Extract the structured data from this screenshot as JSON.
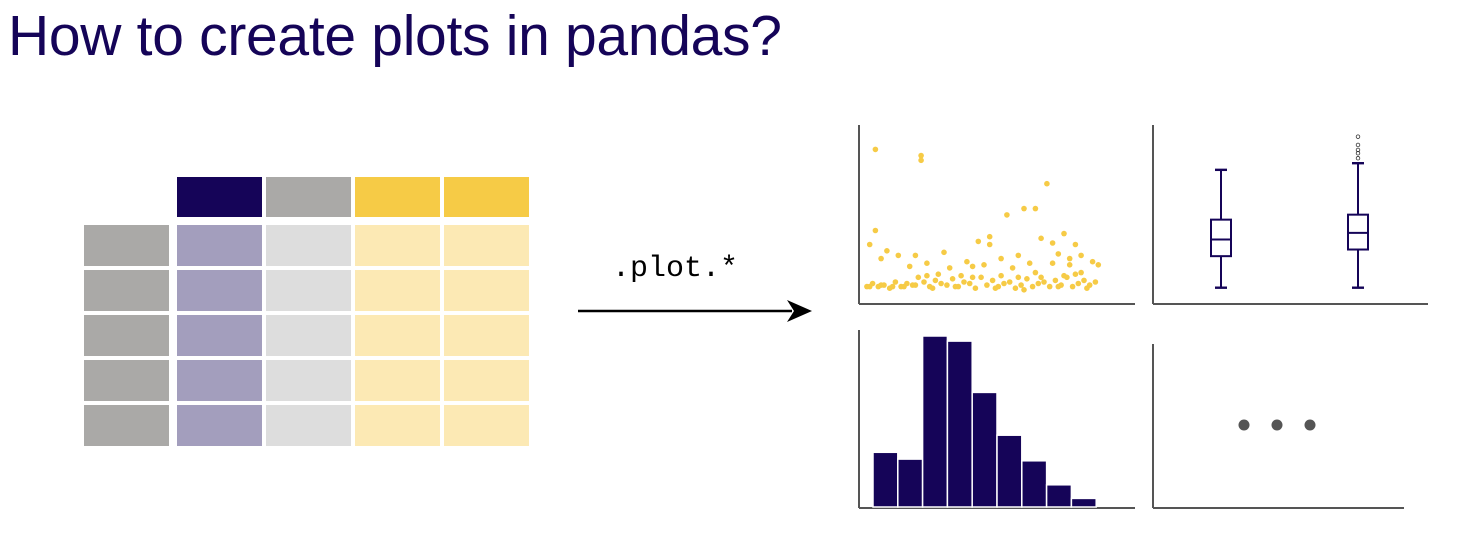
{
  "title": "How to create plots in pandas?",
  "operation": ".plot.*",
  "more_plots": "...",
  "colors": {
    "title": "#150458",
    "header_dark": "#150458",
    "header_gray": "#aaa9a7",
    "header_yellow": "#f6cb46",
    "index_gray": "#aaa9a7",
    "cell_purple": "#a39ebd",
    "cell_lightgray": "#dddddd",
    "cell_lightyellow": "#fce9b4",
    "axis": "#555555",
    "dot": "#555555"
  },
  "table": {
    "columns": 4,
    "rows": 5,
    "header_colors": [
      "header_dark",
      "header_gray",
      "header_yellow",
      "header_yellow"
    ],
    "column_fill": [
      "cell_purple",
      "cell_lightgray",
      "cell_lightyellow",
      "cell_lightyellow"
    ]
  },
  "icons": {
    "arrow": "right-arrow-icon",
    "ellipsis": "ellipsis-icon"
  },
  "chart_data": [
    {
      "type": "scatter",
      "panel": "top-left",
      "points": [
        [
          2,
          0.94
        ],
        [
          10,
          0.9
        ],
        [
          10,
          0.87
        ],
        [
          32,
          0.72
        ],
        [
          28,
          0.56
        ],
        [
          30,
          0.56
        ],
        [
          25,
          0.52
        ],
        [
          2,
          0.42
        ],
        [
          1,
          0.33
        ],
        [
          6,
          0.26
        ],
        [
          14,
          0.28
        ],
        [
          20,
          0.35
        ],
        [
          22,
          0.38
        ],
        [
          22,
          0.33
        ],
        [
          24,
          0.24
        ],
        [
          27,
          0.26
        ],
        [
          31,
          0.37
        ],
        [
          33,
          0.34
        ],
        [
          35,
          0.4
        ],
        [
          34,
          0.27
        ],
        [
          36,
          0.24
        ],
        [
          37,
          0.33
        ],
        [
          38,
          0.26
        ],
        [
          3,
          0.24
        ],
        [
          4,
          0.29
        ],
        [
          8,
          0.19
        ],
        [
          9,
          0.26
        ],
        [
          11,
          0.21
        ],
        [
          15,
          0.18
        ],
        [
          18,
          0.22
        ],
        [
          19,
          0.19
        ],
        [
          26,
          0.18
        ],
        [
          21,
          0.2
        ],
        [
          29,
          0.21
        ],
        [
          33,
          0.21
        ],
        [
          36,
          0.2
        ],
        [
          40,
          0.22
        ],
        [
          41,
          0.2
        ],
        [
          38,
          0.15
        ],
        [
          30,
          0.15
        ],
        [
          0.5,
          0.06
        ],
        [
          1.5,
          0.08
        ],
        [
          2.5,
          0.06
        ],
        [
          3.5,
          0.07
        ],
        [
          4.5,
          0.05
        ],
        [
          5.5,
          0.09
        ],
        [
          6.5,
          0.06
        ],
        [
          7.5,
          0.08
        ],
        [
          8.5,
          0.07
        ],
        [
          9.5,
          0.12
        ],
        [
          10.5,
          0.09
        ],
        [
          11.5,
          0.06
        ],
        [
          12.5,
          0.1
        ],
        [
          13.5,
          0.08
        ],
        [
          14.5,
          0.07
        ],
        [
          15.5,
          0.11
        ],
        [
          16.5,
          0.06
        ],
        [
          17.5,
          0.09
        ],
        [
          18.5,
          0.08
        ],
        [
          19.5,
          0.05
        ],
        [
          20.5,
          0.12
        ],
        [
          21.5,
          0.07
        ],
        [
          22.5,
          0.1
        ],
        [
          23.5,
          0.06
        ],
        [
          24.5,
          0.08
        ],
        [
          25.5,
          0.09
        ],
        [
          26.5,
          0.05
        ],
        [
          27.5,
          0.07
        ],
        [
          28.5,
          0.11
        ],
        [
          29.5,
          0.06
        ],
        [
          30.5,
          0.08
        ],
        [
          31.5,
          0.09
        ],
        [
          32.5,
          0.06
        ],
        [
          33.5,
          0.1
        ],
        [
          34.5,
          0.07
        ],
        [
          35.5,
          0.12
        ],
        [
          36.5,
          0.06
        ],
        [
          37.5,
          0.08
        ],
        [
          38.5,
          0.1
        ],
        [
          39.5,
          0.07
        ],
        [
          40.5,
          0.09
        ],
        [
          1,
          0.06
        ],
        [
          3,
          0.07
        ],
        [
          5,
          0.06
        ],
        [
          7,
          0.06
        ],
        [
          9,
          0.07
        ],
        [
          12,
          0.05
        ],
        [
          16,
          0.06
        ],
        [
          23,
          0.05
        ],
        [
          28,
          0.04
        ],
        [
          34,
          0.06
        ],
        [
          39,
          0.05
        ],
        [
          13,
          0.14
        ],
        [
          17,
          0.13
        ],
        [
          24,
          0.13
        ],
        [
          31,
          0.12
        ],
        [
          37,
          0.14
        ],
        [
          11,
          0.13
        ],
        [
          19,
          0.12
        ],
        [
          27,
          0.12
        ],
        [
          35,
          0.13
        ]
      ],
      "xlim": [
        0,
        42
      ],
      "ylim": [
        0,
        1
      ]
    },
    {
      "type": "box",
      "panel": "top-right",
      "series": [
        {
          "whisker_low": 0.05,
          "q1": 0.24,
          "median": 0.34,
          "q3": 0.46,
          "whisker_high": 0.76,
          "outliers": []
        },
        {
          "whisker_low": 0.05,
          "q1": 0.28,
          "median": 0.38,
          "q3": 0.49,
          "whisker_high": 0.8,
          "outliers": [
            0.83,
            0.86,
            0.88,
            0.91,
            0.96
          ]
        }
      ],
      "ylim": [
        0,
        1
      ]
    },
    {
      "type": "histogram",
      "panel": "bottom-left",
      "values": [
        0.32,
        0.28,
        1.0,
        0.97,
        0.67,
        0.42,
        0.27,
        0.13,
        0.05
      ],
      "ylim": [
        0,
        1.05
      ]
    },
    {
      "type": "placeholder",
      "panel": "bottom-right"
    }
  ]
}
